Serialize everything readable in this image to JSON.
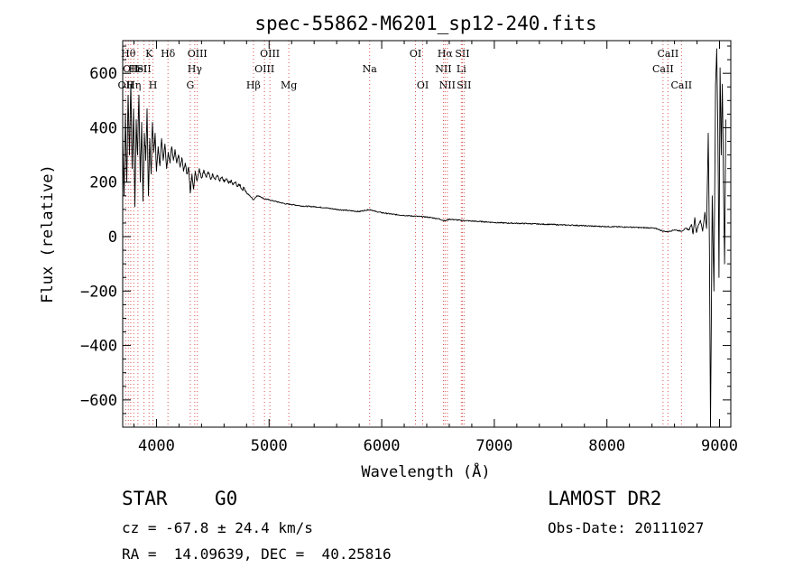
{
  "chart_data": {
    "type": "line",
    "title": "spec-55862-M6201_sp12-240.fits",
    "xlabel": "Wavelength (Å)",
    "ylabel": "Flux (relative)",
    "xlim": [
      3700,
      9100
    ],
    "ylim": [
      -700,
      720
    ],
    "xticks": [
      {
        "value": 4000,
        "label": "4000"
      },
      {
        "value": 5000,
        "label": "5000"
      },
      {
        "value": 6000,
        "label": "6000"
      },
      {
        "value": 7000,
        "label": "7000"
      },
      {
        "value": 8000,
        "label": "8000"
      },
      {
        "value": 9000,
        "label": "9000"
      }
    ],
    "yticks": [
      {
        "value": -600,
        "label": "−600"
      },
      {
        "value": -400,
        "label": "−400"
      },
      {
        "value": -200,
        "label": "−200"
      },
      {
        "value": 0,
        "label": "0"
      },
      {
        "value": 200,
        "label": "200"
      },
      {
        "value": 400,
        "label": "400"
      },
      {
        "value": 600,
        "label": "600"
      }
    ],
    "grid": false,
    "legend": "none",
    "series": [
      {
        "points": [
          [
            3700,
            380
          ],
          [
            3712,
            150
          ],
          [
            3724,
            450
          ],
          [
            3736,
            200
          ],
          [
            3748,
            520
          ],
          [
            3760,
            300
          ],
          [
            3772,
            560
          ],
          [
            3784,
            250
          ],
          [
            3796,
            470
          ],
          [
            3808,
            110
          ],
          [
            3820,
            430
          ],
          [
            3832,
            300
          ],
          [
            3844,
            520
          ],
          [
            3856,
            200
          ],
          [
            3868,
            420
          ],
          [
            3880,
            130
          ],
          [
            3892,
            380
          ],
          [
            3904,
            280
          ],
          [
            3916,
            470
          ],
          [
            3928,
            150
          ],
          [
            3940,
            360
          ],
          [
            3952,
            230
          ],
          [
            3964,
            420
          ],
          [
            3976,
            310
          ],
          [
            3988,
            380
          ],
          [
            4000,
            240
          ],
          [
            4015,
            330
          ],
          [
            4030,
            260
          ],
          [
            4045,
            360
          ],
          [
            4060,
            280
          ],
          [
            4075,
            340
          ],
          [
            4090,
            250
          ],
          [
            4105,
            310
          ],
          [
            4120,
            270
          ],
          [
            4135,
            330
          ],
          [
            4150,
            280
          ],
          [
            4165,
            320
          ],
          [
            4180,
            270
          ],
          [
            4195,
            300
          ],
          [
            4210,
            255
          ],
          [
            4225,
            290
          ],
          [
            4240,
            240
          ],
          [
            4255,
            270
          ],
          [
            4270,
            230
          ],
          [
            4285,
            255
          ],
          [
            4300,
            160
          ],
          [
            4315,
            230
          ],
          [
            4330,
            175
          ],
          [
            4345,
            240
          ],
          [
            4360,
            205
          ],
          [
            4380,
            250
          ],
          [
            4400,
            215
          ],
          [
            4420,
            245
          ],
          [
            4440,
            220
          ],
          [
            4460,
            238
          ],
          [
            4480,
            210
          ],
          [
            4500,
            230
          ],
          [
            4520,
            212
          ],
          [
            4540,
            226
          ],
          [
            4560,
            205
          ],
          [
            4580,
            218
          ],
          [
            4600,
            200
          ],
          [
            4620,
            212
          ],
          [
            4640,
            195
          ],
          [
            4660,
            205
          ],
          [
            4680,
            190
          ],
          [
            4700,
            200
          ],
          [
            4720,
            184
          ],
          [
            4740,
            192
          ],
          [
            4760,
            172
          ],
          [
            4780,
            180
          ],
          [
            4800,
            160
          ],
          [
            4830,
            150
          ],
          [
            4861,
            135
          ],
          [
            4890,
            150
          ],
          [
            4920,
            148
          ],
          [
            4950,
            140
          ],
          [
            5000,
            135
          ],
          [
            5050,
            130
          ],
          [
            5100,
            125
          ],
          [
            5150,
            120
          ],
          [
            5200,
            118
          ],
          [
            5300,
            112
          ],
          [
            5400,
            110
          ],
          [
            5500,
            106
          ],
          [
            5600,
            100
          ],
          [
            5700,
            96
          ],
          [
            5800,
            92
          ],
          [
            5893,
            100
          ],
          [
            5950,
            92
          ],
          [
            6000,
            88
          ],
          [
            6100,
            82
          ],
          [
            6200,
            78
          ],
          [
            6300,
            75
          ],
          [
            6400,
            72
          ],
          [
            6500,
            66
          ],
          [
            6563,
            58
          ],
          [
            6600,
            64
          ],
          [
            6700,
            60
          ],
          [
            6800,
            57
          ],
          [
            6900,
            55
          ],
          [
            7000,
            52
          ],
          [
            7100,
            50
          ],
          [
            7200,
            49
          ],
          [
            7300,
            48
          ],
          [
            7400,
            46
          ],
          [
            7500,
            45
          ],
          [
            7600,
            43
          ],
          [
            7700,
            42
          ],
          [
            7800,
            40
          ],
          [
            7900,
            38
          ],
          [
            8000,
            37
          ],
          [
            8100,
            36
          ],
          [
            8200,
            35
          ],
          [
            8300,
            33
          ],
          [
            8400,
            32
          ],
          [
            8450,
            28
          ],
          [
            8498,
            20
          ],
          [
            8542,
            18
          ],
          [
            8600,
            25
          ],
          [
            8662,
            20
          ],
          [
            8700,
            30
          ],
          [
            8730,
            25
          ],
          [
            8750,
            45
          ],
          [
            8765,
            10
          ],
          [
            8780,
            70
          ],
          [
            8795,
            15
          ],
          [
            8810,
            40
          ],
          [
            8830,
            60
          ],
          [
            8850,
            20
          ],
          [
            8870,
            90
          ],
          [
            8885,
            30
          ],
          [
            8900,
            380
          ],
          [
            8910,
            -40
          ],
          [
            8920,
            -700
          ],
          [
            8935,
            150
          ],
          [
            8950,
            -200
          ],
          [
            8965,
            560
          ],
          [
            8975,
            690
          ],
          [
            8985,
            400
          ],
          [
            8995,
            -150
          ],
          [
            9005,
            620
          ],
          [
            9015,
            300
          ],
          [
            9025,
            560
          ],
          [
            9035,
            200
          ],
          [
            9045,
            -100
          ],
          [
            9055,
            430
          ]
        ]
      }
    ],
    "lines": [
      {
        "x": 3727,
        "row": 2,
        "text": "OII"
      },
      {
        "x": 3750,
        "row": 0,
        "text": "Hθ"
      },
      {
        "x": 3771,
        "row": 1,
        "text": "OII"
      },
      {
        "x": 3798,
        "row": 2,
        "text": "Hη"
      },
      {
        "x": 3835,
        "row": 1,
        "text": "HeI"
      },
      {
        "x": 3889,
        "row": 1,
        "text": "SII"
      },
      {
        "x": 3934,
        "row": 0,
        "text": "K"
      },
      {
        "x": 3969,
        "row": 2,
        "text": "H"
      },
      {
        "x": 4102,
        "row": 0,
        "text": "Hδ"
      },
      {
        "x": 4300,
        "row": 2,
        "text": "G"
      },
      {
        "x": 4340,
        "row": 1,
        "text": "Hγ"
      },
      {
        "x": 4363,
        "row": 0,
        "text": "OIII"
      },
      {
        "x": 4861,
        "row": 2,
        "text": "Hβ"
      },
      {
        "x": 4959,
        "row": 1,
        "text": "OIII"
      },
      {
        "x": 5007,
        "row": 0,
        "text": "OIII"
      },
      {
        "x": 5175,
        "row": 2,
        "text": "Mg"
      },
      {
        "x": 5893,
        "row": 1,
        "text": "Na"
      },
      {
        "x": 6300,
        "row": 0,
        "text": "OI"
      },
      {
        "x": 6364,
        "row": 2,
        "text": "OI"
      },
      {
        "x": 6548,
        "row": 1,
        "text": "NII"
      },
      {
        "x": 6563,
        "row": 0,
        "text": "Hα"
      },
      {
        "x": 6583,
        "row": 2,
        "text": "NII"
      },
      {
        "x": 6707,
        "row": 1,
        "text": "Li"
      },
      {
        "x": 6716,
        "row": 0,
        "text": "SII"
      },
      {
        "x": 6731,
        "row": 2,
        "text": "SII"
      },
      {
        "x": 8498,
        "row": 1,
        "text": "CaII"
      },
      {
        "x": 8542,
        "row": 0,
        "text": "CaII"
      },
      {
        "x": 8662,
        "row": 2,
        "text": "CaII"
      }
    ]
  },
  "info": {
    "class_label": "STAR",
    "subclass_label": "G0",
    "survey_label": "LAMOST DR2",
    "cz_text": "cz = -67.8 ± 24.4 km/s",
    "obs_date_text": "Obs-Date: 20111027",
    "coords_text": "RA =  14.09639, DEC =  40.25816"
  }
}
